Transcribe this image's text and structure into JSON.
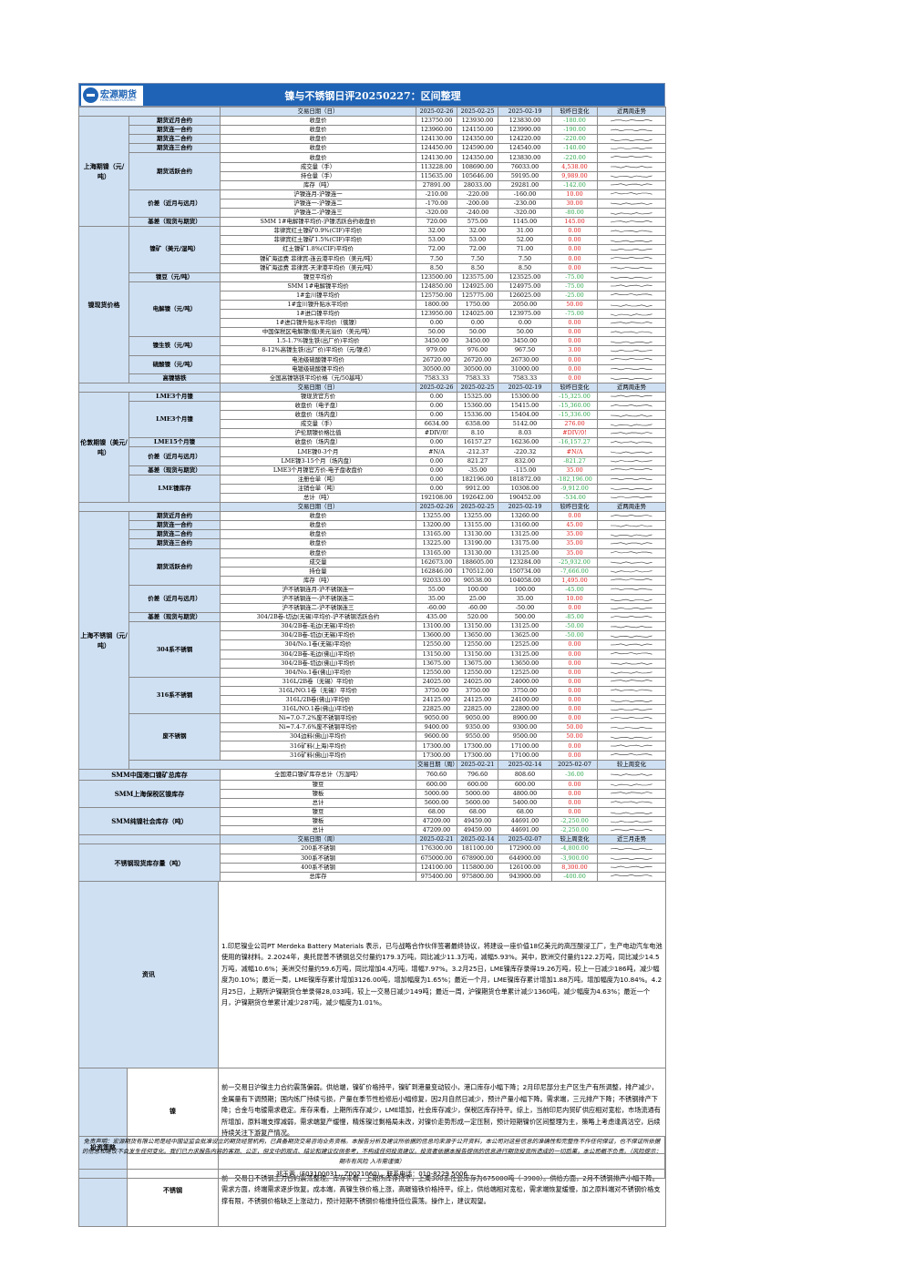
{
  "header": {
    "logo": "宏源期货",
    "logo_en": "HONGYUAN FUTURES",
    "title": "镍与不锈钢日评20250227：区间整理"
  },
  "columns_daily": [
    "交易日期（日）",
    "2025-02-26",
    "2025-02-25",
    "2025-02-19",
    "较昨日变化",
    "近两周走势"
  ],
  "columns_weekly": [
    "交易日期（周）",
    "2025-02-21",
    "2025-02-14",
    "2025-02-07",
    "较上周变化",
    "近三月走势"
  ],
  "sections": {
    "s1": "上海期镍（元/吨）",
    "s2": "镍现货价格",
    "s3": "伦敦期镍（美元/吨）",
    "s4": "上海不锈钢（元/吨）",
    "s5": "SMM中国港口镍矿总库存",
    "s6": "SMM上海保税区镍库存",
    "s7": "SMM纯镍社会库存（吨）",
    "s8": "不锈钢现货库存量（吨）"
  },
  "rows": [
    {
      "sub": "期货近月合约",
      "ind": "收盘价",
      "v": [
        "123750.00",
        "123930.00",
        "123830.00"
      ],
      "chg": "-180.00",
      "dir": "dn"
    },
    {
      "sub": "期货连一合约",
      "ind": "收盘价",
      "v": [
        "123960.00",
        "124150.00",
        "123990.00"
      ],
      "chg": "-190.00",
      "dir": "dn"
    },
    {
      "sub": "期货连二合约",
      "ind": "收盘价",
      "v": [
        "124130.00",
        "124350.00",
        "124220.00"
      ],
      "chg": "-220.00",
      "dir": "dn"
    },
    {
      "sub": "期货连三合约",
      "ind": "收盘价",
      "v": [
        "124450.00",
        "124590.00",
        "124540.00"
      ],
      "chg": "-140.00",
      "dir": "dn"
    },
    {
      "sub": "期货活跃合约",
      "ind": "收盘价",
      "v": [
        "124130.00",
        "124350.00",
        "123830.00"
      ],
      "chg": "-220.00",
      "dir": "dn"
    },
    {
      "ind": "成交量（手）",
      "v": [
        "113228.00",
        "108690.00",
        "76033.00"
      ],
      "chg": "4,538.00",
      "dir": "up"
    },
    {
      "ind": "持仓量（手）",
      "v": [
        "115635.00",
        "105646.00",
        "59195.00"
      ],
      "chg": "9,989.00",
      "dir": "up"
    },
    {
      "ind": "库存（吨）",
      "v": [
        "27891.00",
        "28033.00",
        "29281.00"
      ],
      "chg": "-142.00",
      "dir": "dn"
    },
    {
      "sub": "价差（近月与远月）",
      "ind": "沪镍连月-沪镍连一",
      "v": [
        "-210.00",
        "-220.00",
        "-160.00"
      ],
      "chg": "10.00",
      "dir": "up"
    },
    {
      "ind": "沪镍连一-沪镍连二",
      "v": [
        "-170.00",
        "-200.00",
        "-230.00"
      ],
      "chg": "30.00",
      "dir": "up"
    },
    {
      "ind": "沪镍连二-沪镍连三",
      "v": [
        "-320.00",
        "-240.00",
        "-320.00"
      ],
      "chg": "-80.00",
      "dir": "dn"
    },
    {
      "sub": "基差（现货与期货）",
      "ind": "SMM 1#电解镍平均价-沪镍活跃合约收盘价",
      "v": [
        "720.00",
        "575.00",
        "1145.00"
      ],
      "chg": "145.00",
      "dir": "up"
    },
    {
      "sub": "镍矿（美元/湿吨）",
      "ind": "菲律宾红土镍矿0.9%(CIF)平均价",
      "v": [
        "32.00",
        "32.00",
        "31.00"
      ],
      "chg": "0.00",
      "dir": "up"
    },
    {
      "ind": "菲律宾红土镍矿1.5%(CIF)平均价",
      "v": [
        "53.00",
        "53.00",
        "52.00"
      ],
      "chg": "0.00",
      "dir": "up"
    },
    {
      "ind": "红土镍矿1.8%(CIF)平均价",
      "v": [
        "72.00",
        "72.00",
        "71.00"
      ],
      "chg": "0.00",
      "dir": "up"
    },
    {
      "ind": "镍矿海运费 菲律宾-连云港平均价（美元/吨）",
      "v": [
        "7.50",
        "7.50",
        "7.50"
      ],
      "chg": "0.00",
      "dir": "up"
    },
    {
      "ind": "镍矿海运费 菲律宾-天津港平均价（美元/吨）",
      "v": [
        "8.50",
        "8.50",
        "8.50"
      ],
      "chg": "0.00",
      "dir": "up"
    },
    {
      "sub": "镍豆（元/吨）",
      "ind": "镍豆平均价",
      "v": [
        "123500.00",
        "123575.00",
        "123525.00"
      ],
      "chg": "-75.00",
      "dir": "dn"
    },
    {
      "sub": "电解镍（元/吨）",
      "ind": "SMM 1#电解镍平均价",
      "v": [
        "124850.00",
        "124925.00",
        "124975.00"
      ],
      "chg": "-75.00",
      "dir": "dn"
    },
    {
      "ind": "1#金川镍平均价",
      "v": [
        "125750.00",
        "125775.00",
        "126025.00"
      ],
      "chg": "-25.00",
      "dir": "dn"
    },
    {
      "ind": "1#金川镍升贴水平均价",
      "v": [
        "1800.00",
        "1750.00",
        "2050.00"
      ],
      "chg": "50.00",
      "dir": "up"
    },
    {
      "ind": "1#进口镍平均价",
      "v": [
        "123950.00",
        "124025.00",
        "123975.00"
      ],
      "chg": "-75.00",
      "dir": "dn"
    },
    {
      "ind": "1#进口镍升贴水平均价（俄镍）",
      "v": [
        "0.00",
        "0.00",
        "0.00"
      ],
      "chg": "0.00",
      "dir": "up"
    },
    {
      "ind": "中国保税区电解镍(俄)美元溢价（美元/吨）",
      "v": [
        "50.00",
        "50.00",
        "50.00"
      ],
      "chg": "0.00",
      "dir": "up"
    },
    {
      "sub": "镍生铁（元/吨）",
      "ind": "1.5-1.7%镍生铁(出厂价)平均价",
      "v": [
        "3450.00",
        "3450.00",
        "3450.00"
      ],
      "chg": "0.00",
      "dir": "up"
    },
    {
      "ind": "8-12%高镍生铁(出厂价)平均价（元/镍点）",
      "v": [
        "979.00",
        "976.00",
        "967.50"
      ],
      "chg": "3.00",
      "dir": "up"
    },
    {
      "sub": "硫酸镍（元/吨）",
      "ind": "电池级硫酸镍平均价",
      "v": [
        "26720.00",
        "26720.00",
        "26730.00"
      ],
      "chg": "0.00",
      "dir": "up"
    },
    {
      "ind": "电镀级硫酸镍平均价",
      "v": [
        "30500.00",
        "30500.00",
        "31000.00"
      ],
      "chg": "0.00",
      "dir": "up"
    },
    {
      "sub": "高镍铬铁",
      "ind": "全国高镍铬铁平均价格（元/50基吨）",
      "v": [
        "7583.33",
        "7583.33",
        "7583.33"
      ],
      "chg": "0.00",
      "dir": "up"
    },
    {
      "sub": "LME3个月镍",
      "ind": "镍现货官方价",
      "v": [
        "0.00",
        "15325.00",
        "15300.00"
      ],
      "chg": "-15,325.00",
      "dir": "dn"
    },
    {
      "sub": "LME3个月镍",
      "ind": "收盘价（电子盘）",
      "v": [
        "0.00",
        "15360.00",
        "15415.00"
      ],
      "chg": "-15,360.00",
      "dir": "dn"
    },
    {
      "ind": "收盘价（场内盘）",
      "v": [
        "0.00",
        "15336.00",
        "15404.00"
      ],
      "chg": "-15,336.00",
      "dir": "dn"
    },
    {
      "ind": "成交量（手）",
      "v": [
        "6634.00",
        "6358.00",
        "5142.00"
      ],
      "chg": "276.00",
      "dir": "up"
    },
    {
      "ind": "沪伦期镍价格比值",
      "v": [
        "#DIV/0!",
        "8.10",
        "8.03"
      ],
      "chg": "#DIV/0!",
      "dir": "up"
    },
    {
      "sub": "LME15个月镍",
      "ind": "收盘价（场内盘）",
      "v": [
        "0.00",
        "16157.27",
        "16236.00"
      ],
      "chg": "-16,157.27",
      "dir": "dn"
    },
    {
      "sub": "价差（近月与远月）",
      "ind": "LME镍0-3个月",
      "v": [
        "#N/A",
        "-212.37",
        "-220.32"
      ],
      "chg": "#N/A",
      "dir": "up"
    },
    {
      "ind": "LME镍3-15个月（场内盘）",
      "v": [
        "0.00",
        "821.27",
        "832.00"
      ],
      "chg": "-821.27",
      "dir": "dn"
    },
    {
      "sub": "基差（现货与期货）",
      "ind": "LME3个月镍官方价-电子盘收盘价",
      "v": [
        "0.00",
        "-35.00",
        "-115.00"
      ],
      "chg": "35.00",
      "dir": "up"
    },
    {
      "sub": "LME镍库存",
      "ind": "注册仓单（吨）",
      "v": [
        "0.00",
        "182196.00",
        "181872.00"
      ],
      "chg": "-182,196.00",
      "dir": "dn"
    },
    {
      "ind": "注销仓单（吨）",
      "v": [
        "0.00",
        "9912.00",
        "10308.00"
      ],
      "chg": "-9,912.00",
      "dir": "dn"
    },
    {
      "ind": "总计（吨）",
      "v": [
        "192108.00",
        "192642.00",
        "190452.00"
      ],
      "chg": "-534.00",
      "dir": "dn"
    },
    {
      "sub": "期货近月合约",
      "ind": "收盘价",
      "v": [
        "13255.00",
        "13255.00",
        "13260.00"
      ],
      "chg": "0.00",
      "dir": "up"
    },
    {
      "sub": "期货连一合约",
      "ind": "收盘价",
      "v": [
        "13200.00",
        "13155.00",
        "13160.00"
      ],
      "chg": "45.00",
      "dir": "up"
    },
    {
      "sub": "期货连二合约",
      "ind": "收盘价",
      "v": [
        "13165.00",
        "13130.00",
        "13125.00"
      ],
      "chg": "35.00",
      "dir": "up"
    },
    {
      "sub": "期货连三合约",
      "ind": "收盘价",
      "v": [
        "13225.00",
        "13190.00",
        "13175.00"
      ],
      "chg": "35.00",
      "dir": "up"
    },
    {
      "sub": "期货活跃合约",
      "ind": "收盘价",
      "v": [
        "13165.00",
        "13130.00",
        "13125.00"
      ],
      "chg": "35.00",
      "dir": "up"
    },
    {
      "ind": "成交量",
      "v": [
        "162673.00",
        "188605.00",
        "123284.00"
      ],
      "chg": "-25,932.00",
      "dir": "dn"
    },
    {
      "ind": "持仓量",
      "v": [
        "162846.00",
        "170512.00",
        "150734.00"
      ],
      "chg": "-7,666.00",
      "dir": "dn"
    },
    {
      "ind": "库存（吨）",
      "v": [
        "92033.00",
        "90538.00",
        "104058.00"
      ],
      "chg": "1,495.00",
      "dir": "up"
    },
    {
      "sub": "价差（近月与远月）",
      "ind": "沪不锈钢连月-沪不锈钢连一",
      "v": [
        "55.00",
        "100.00",
        "100.00"
      ],
      "chg": "-45.00",
      "dir": "dn"
    },
    {
      "ind": "沪不锈钢连一-沪不锈钢连二",
      "v": [
        "35.00",
        "25.00",
        "35.00"
      ],
      "chg": "10.00",
      "dir": "up"
    },
    {
      "ind": "沪不锈钢连二-沪不锈钢连三",
      "v": [
        "-60.00",
        "-60.00",
        "-50.00"
      ],
      "chg": "0.00",
      "dir": "up"
    },
    {
      "sub": "基差（现货与期货）",
      "ind": "304/2B卷-切边(无锡)平均价-沪不锈钢活跃合约",
      "v": [
        "435.00",
        "520.00",
        "500.00"
      ],
      "chg": "-85.00",
      "dir": "dn"
    },
    {
      "sub": "304系不锈钢",
      "ind": "304/2B卷-毛边(无锡)平均价",
      "v": [
        "13100.00",
        "13150.00",
        "13125.00"
      ],
      "chg": "-50.00",
      "dir": "dn"
    },
    {
      "ind": "304/2B卷-切边(无锡)平均价",
      "v": [
        "13600.00",
        "13650.00",
        "13625.00"
      ],
      "chg": "-50.00",
      "dir": "dn"
    },
    {
      "ind": "304/No.1卷(无锡)平均价",
      "v": [
        "12550.00",
        "12550.00",
        "12525.00"
      ],
      "chg": "0.00",
      "dir": "up"
    },
    {
      "ind": "304/2B卷-毛边(佛山)平均价",
      "v": [
        "13150.00",
        "13150.00",
        "13125.00"
      ],
      "chg": "0.00",
      "dir": "up"
    },
    {
      "ind": "304/2B卷-切边(佛山)平均价",
      "v": [
        "13675.00",
        "13675.00",
        "13650.00"
      ],
      "chg": "0.00",
      "dir": "up"
    },
    {
      "ind": "304/No.1卷(佛山)平均价",
      "v": [
        "12550.00",
        "12550.00",
        "12525.00"
      ],
      "chg": "0.00",
      "dir": "up"
    },
    {
      "sub": "316系不锈钢",
      "ind": "316L/2B卷（无锡）平均价",
      "v": [
        "24025.00",
        "24025.00",
        "24000.00"
      ],
      "chg": "0.00",
      "dir": "up"
    },
    {
      "ind": "316L/NO.1卷（无锡）平均价",
      "v": [
        "3750.00",
        "3750.00",
        "3750.00"
      ],
      "chg": "0.00",
      "dir": "up"
    },
    {
      "ind": "316L/2B卷(佛山)平均价",
      "v": [
        "24125.00",
        "24125.00",
        "24100.00"
      ],
      "chg": "0.00",
      "dir": "up"
    },
    {
      "ind": "316L/NO.1卷(佛山)平均价",
      "v": [
        "22825.00",
        "22825.00",
        "22800.00"
      ],
      "chg": "0.00",
      "dir": "up"
    },
    {
      "sub": "废不锈钢",
      "ind": "Ni≈7.0-7.2%废不锈钢平均价",
      "v": [
        "9050.00",
        "9050.00",
        "8900.00"
      ],
      "chg": "0.00",
      "dir": "up"
    },
    {
      "ind": "Ni≈7.4-7.6%废不锈钢平均价",
      "v": [
        "9400.00",
        "9350.00",
        "9300.00"
      ],
      "chg": "50.00",
      "dir": "up"
    },
    {
      "ind": "304边料(佛山)平均价",
      "v": [
        "9600.00",
        "9550.00",
        "9500.00"
      ],
      "chg": "50.00",
      "dir": "up"
    },
    {
      "ind": "316矿料(上海)平均价",
      "v": [
        "17300.00",
        "17300.00",
        "17100.00"
      ],
      "chg": "0.00",
      "dir": "up"
    },
    {
      "ind": "316矿料(佛山)平均价",
      "v": [
        "17300.00",
        "17300.00",
        "17100.00"
      ],
      "chg": "0.00",
      "dir": "up"
    },
    {
      "ind": "全国港口镍矿库存总计（万湿吨）",
      "v": [
        "760.60",
        "796.60",
        "808.60"
      ],
      "chg": "-36.00",
      "dir": "dn"
    },
    {
      "ind": "镍豆",
      "v": [
        "600.00",
        "600.00",
        "600.00"
      ],
      "chg": "0.00",
      "dir": "up"
    },
    {
      "ind": "镍板",
      "v": [
        "5000.00",
        "5000.00",
        "4800.00"
      ],
      "chg": "0.00",
      "dir": "up"
    },
    {
      "ind": "总计",
      "v": [
        "5600.00",
        "5600.00",
        "5400.00"
      ],
      "chg": "0.00",
      "dir": "up"
    },
    {
      "ind": "镍豆",
      "v": [
        "68.00",
        "68.00",
        "68.00"
      ],
      "chg": "0.00",
      "dir": "up"
    },
    {
      "ind": "镍板",
      "v": [
        "47209.00",
        "49459.00",
        "44691.00"
      ],
      "chg": "-2,250.00",
      "dir": "dn"
    },
    {
      "ind": "总计",
      "v": [
        "47209.00",
        "49459.00",
        "44691.00"
      ],
      "chg": "-2,250.00",
      "dir": "dn"
    },
    {
      "ind": "200系不锈钢",
      "v": [
        "176300.00",
        "181100.00",
        "172900.00"
      ],
      "chg": "-4,800.00",
      "dir": "dn"
    },
    {
      "ind": "300系不锈钢",
      "v": [
        "675000.00",
        "678900.00",
        "644900.00"
      ],
      "chg": "-3,900.00",
      "dir": "dn"
    },
    {
      "ind": "400系不锈钢",
      "v": [
        "124100.00",
        "115800.00",
        "126100.00"
      ],
      "chg": "8,300.00",
      "dir": "up"
    },
    {
      "ind": "总库存",
      "v": [
        "975400.00",
        "975800.00",
        "943900.00"
      ],
      "chg": "-400.00",
      "dir": "dn"
    }
  ],
  "notes": {
    "info_label": "资讯",
    "info_text": "1.印尼镍业公司PT Merdeka Battery Materials 表示，已与战略合作伙伴签署最终协议，将建设一座价值18亿美元的高压酸浸工厂，生产电动汽车电池使用的镍材料。2.2024年，奥托昆普不锈钢总交付量约179.3万吨，同比减少11.3万吨，减幅5.93%。其中，欧洲交付量约122.2万吨，同比减少14.5万吨，减幅10.6%；美洲交付量约59.6万吨，同比增加4.4万吨，增幅7.97%。3.2月25日，LME镍库存录得19.26万吨，较上一日减少186吨，减少幅度为0.10%；最近一周，LME镍库存累计增加3126.00吨，增加幅度为1.65%；最近一个月，LME镍库存累计增加1.88万吨，增加幅度为10.84%。4.2月25日，上期所沪镍期货仓单录得28,033吨，较上一交易日减少149吨；最近一周，沪镍期货仓单累计减少1360吨，减少幅度为4.63%；最近一个月，沪镍期货仓单累计减少287吨，减少幅度为1.01%。",
    "strategy_label": "投资策略",
    "nickel_label": "镍",
    "nickel_text": "前一交易日沪镍主力合约震荡偏弱。供给端，镍矿价格持平，镍矿到港量变动较小，港口库存小幅下降；2月印尼部分主产区生产有所调整，排产减少，金属量有下调预期；国内炼厂持续亏损，产量在季节性检修后小幅修复，因2月自然日减少，预计产量小幅下降。需求端，三元排产下降；不锈钢排产下降；合金与电镀需求稳定。库存来看，上期所库存减少，LME增加，社会库存减少，保税区库存持平。综上，当前印尼内贸矿供应相对宽松，市场流通有所增加，原料端支撑减弱，需求端复产缓慢，精炼镍过剩格局未改，对镍价走势形成一定压制，预计短期镍价区间整理为主，策略上考虑逢高沽空，后续持续关注下游复产情况。",
    "ss_label": "不锈钢",
    "ss_text": "前一交易日不锈钢主力合约震荡整理。库存来看，上期所库存持平，上周300系社会库存为675000吨（-3900）。供给方面，2月不锈钢排产小幅下降。需求方面，终端需求逐步恢复。成本端，高镍生铁价格上涨，高碳铬铁价格持平。综上，供给端相对宽松，需求端恢复缓慢，加之原料端对不锈钢价格支撑有限，不锈钢价格缺乏上涨动力，预计短期不锈钢价格维持低位震荡。操作上，建议观望。",
    "disclaimer": "免责声明：宏源期货有限公司是经中国证监会批准设立的期货经营机构，已具备期货交易咨询业务资格。本报告分析及建议所依据的信息均来源于公开资料，本公司对这些信息的准确性和完整性不作任何保证，也不保证所依据的信息和建议不会发生任何变化。我们已力求报告内容的客观、公正，但文中的观点、结论和建议仅供参考，不构成任何投资建议。投资者依据本报告提供的信息进行期货投资所造成的一切后果，本公司概不负责。（风险提示：期市有风险 入市需谨慎）",
    "author": "祁玉蓉（F03100031，Z0021060），联系电话：010-8229 5006"
  }
}
